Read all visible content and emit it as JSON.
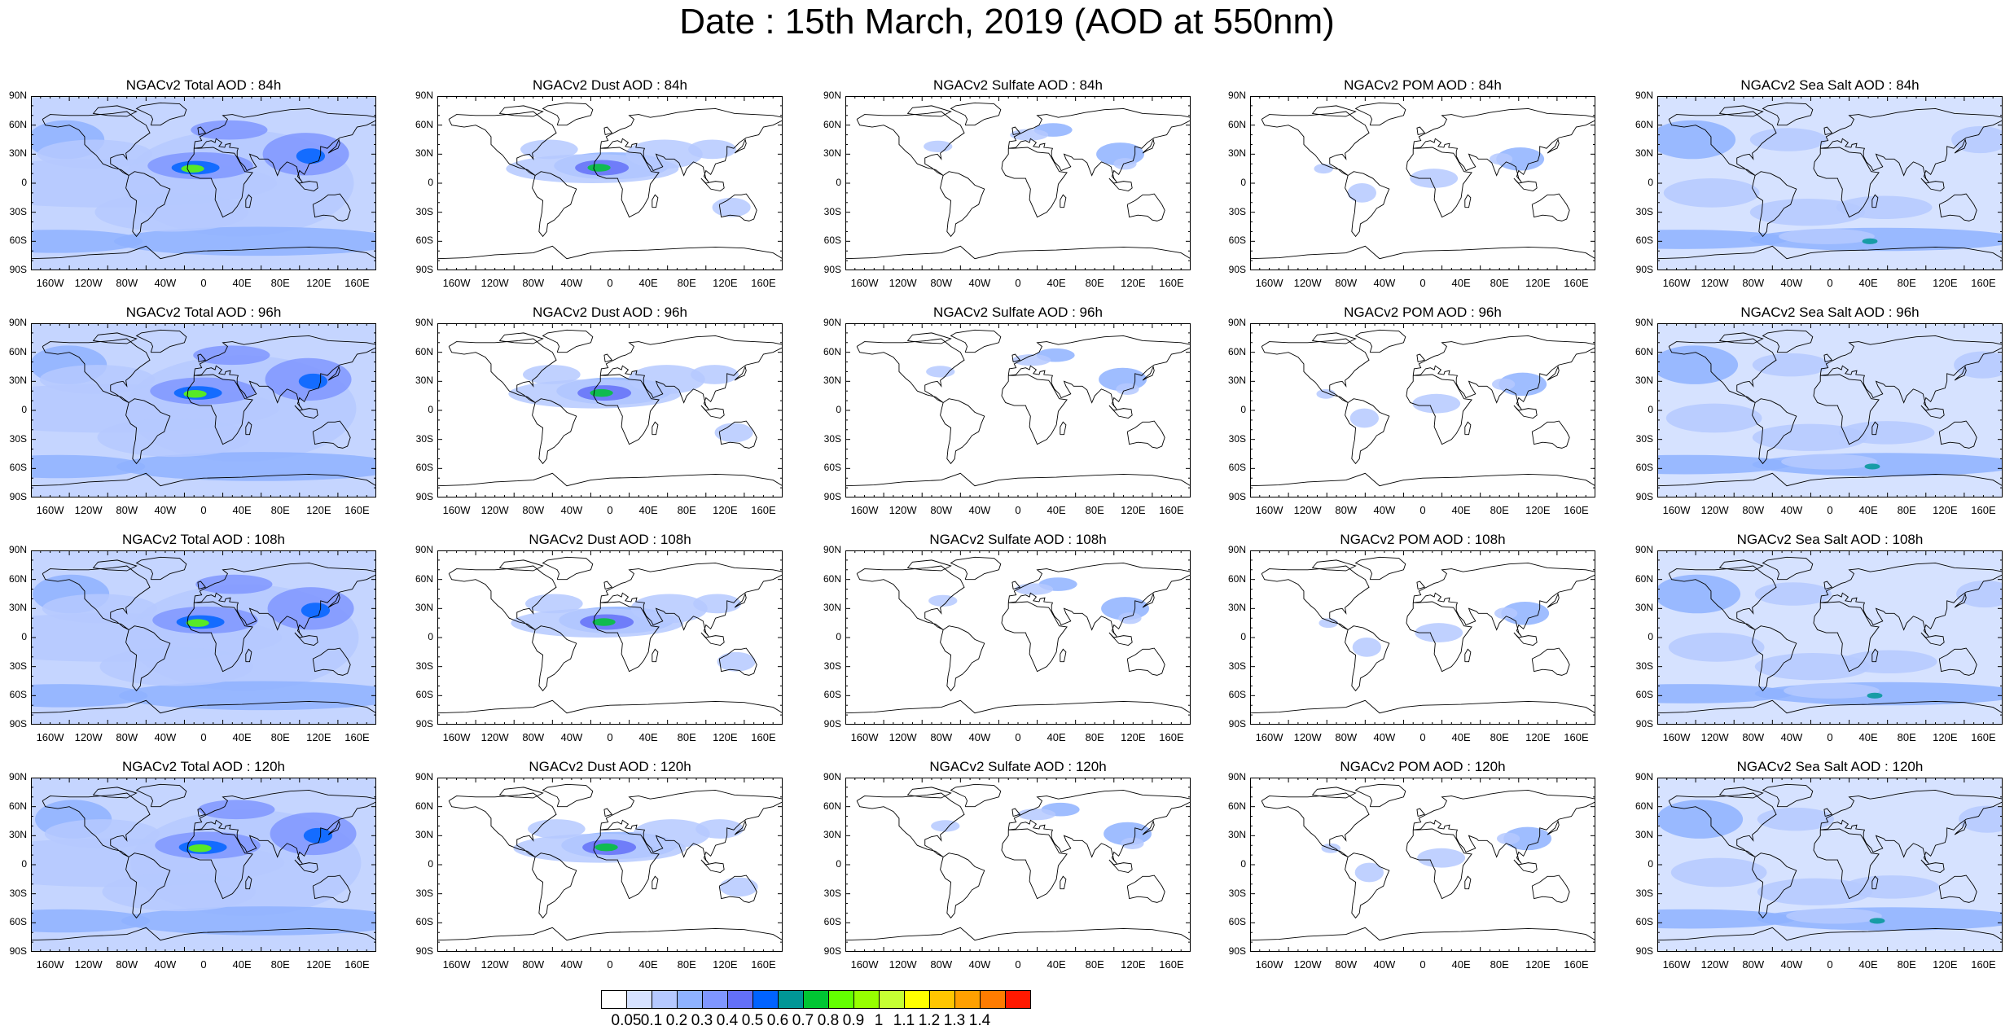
{
  "title": "Date : 15th March, 2019 (AOD at 550nm)",
  "panels": [
    [
      "NGACv2 Total AOD : 84h",
      "NGACv2 Dust AOD : 84h",
      "NGACv2 Sulfate AOD : 84h",
      "NGACv2 POM AOD : 84h",
      "NGACv2 Sea Salt AOD : 84h"
    ],
    [
      "NGACv2 Total AOD : 96h",
      "NGACv2 Dust AOD : 96h",
      "NGACv2 Sulfate AOD : 96h",
      "NGACv2 POM AOD : 96h",
      "NGACv2 Sea Salt AOD : 96h"
    ],
    [
      "NGACv2 Total AOD : 108h",
      "NGACv2 Dust AOD : 108h",
      "NGACv2 Sulfate AOD : 108h",
      "NGACv2 POM AOD : 108h",
      "NGACv2 Sea Salt AOD : 108h"
    ],
    [
      "NGACv2 Total AOD : 120h",
      "NGACv2 Dust AOD : 120h",
      "NGACv2 Sulfate AOD : 120h",
      "NGACv2 POM AOD : 120h",
      "NGACv2 Sea Salt  AOD : 120h"
    ]
  ],
  "lat_ticks": [
    "90N",
    "60N",
    "30N",
    "0",
    "30S",
    "60S",
    "90S"
  ],
  "lon_ticks": [
    "160W",
    "120W",
    "80W",
    "40W",
    "0",
    "40E",
    "80E",
    "120E",
    "160E"
  ],
  "colorbar": {
    "colors": [
      "#ffffff",
      "#d6e2ff",
      "#b5c9ff",
      "#8eb2ff",
      "#7f96ff",
      "#6370f8",
      "#0063ff",
      "#009696",
      "#00c633",
      "#63ff00",
      "#96ff00",
      "#c6ff33",
      "#ffff00",
      "#ffc600",
      "#ffa000",
      "#ff7c00",
      "#ff1900"
    ],
    "labels": [
      "0.05",
      "0.1",
      "0.2",
      "0.3",
      "0.4",
      "0.5",
      "0.6",
      "0.7",
      "0.8",
      "0.9",
      "1",
      "1.1",
      "1.2",
      "1.3",
      "1.4"
    ]
  }
}
